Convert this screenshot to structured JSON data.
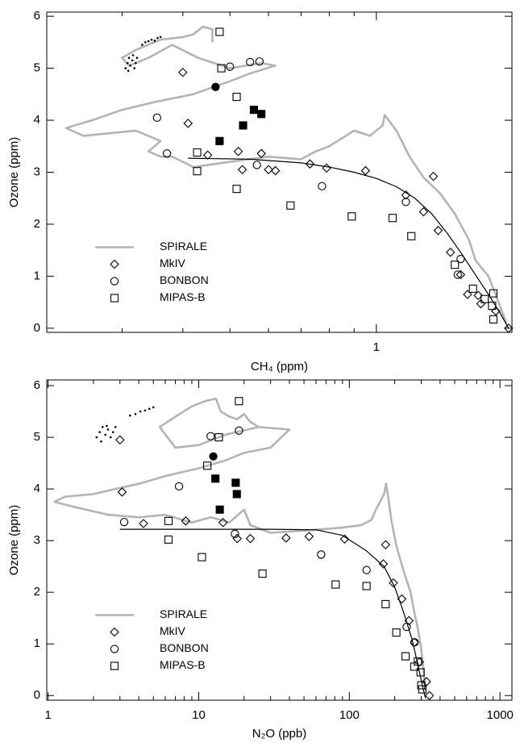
{
  "chart_data": [
    {
      "type": "scatter",
      "xlabel": "CH₄ (ppm)",
      "ylabel": "Ozone (ppm)",
      "xscale": "log",
      "xlim": [
        0.21,
        1.9
      ],
      "ylim": [
        -0.08,
        6.08
      ],
      "xticks": [
        1
      ],
      "xminorticks": [
        0.3,
        0.4,
        0.5,
        0.6,
        0.7,
        0.8,
        0.9
      ],
      "yticks": [
        0,
        1,
        2,
        3,
        4,
        5,
        6
      ],
      "legend": "lower left",
      "series": [
        {
          "name": "SPIRALE",
          "color": "#b4b4b4",
          "marker": "line",
          "x": [
            1.85,
            1.8,
            1.75,
            1.7,
            1.6,
            1.55,
            1.45,
            1.35,
            1.25,
            1.17,
            1.1,
            1.04,
            1.03,
            0.97,
            0.9,
            0.8,
            0.75,
            0.7,
            0.6,
            0.5,
            0.42,
            0.4,
            0.38,
            0.36,
            0.34,
            0.36,
            0.32,
            0.25,
            0.23,
            0.26,
            0.3,
            0.35,
            0.42,
            0.45,
            0.5,
            0.55,
            0.62,
            0.58,
            0.5,
            0.43,
            0.38,
            0.34,
            0.31,
            0.3,
            0.32,
            0.36,
            0.4,
            0.42,
            0.44,
            0.46,
            0.46
          ],
          "values": [
            0.1,
            0.4,
            0.7,
            1.0,
            1.3,
            1.7,
            2.2,
            2.6,
            2.9,
            3.3,
            3.8,
            4.1,
            3.9,
            3.7,
            3.8,
            3.5,
            3.4,
            3.25,
            3.3,
            3.2,
            3.1,
            3.2,
            3.3,
            3.3,
            3.4,
            3.6,
            3.8,
            3.7,
            3.85,
            4.0,
            4.2,
            4.35,
            4.5,
            4.6,
            4.75,
            4.9,
            5.05,
            5.1,
            5.0,
            5.2,
            5.45,
            5.2,
            5.05,
            5.2,
            5.35,
            5.55,
            5.6,
            5.65,
            5.8,
            5.75,
            5.5
          ]
        },
        {
          "color": "#000000",
          "marker": "line",
          "x": [
            0.41,
            0.55,
            0.7,
            0.8,
            0.9,
            1.0,
            1.1,
            1.2,
            1.3,
            1.4,
            1.5,
            1.6,
            1.7,
            1.8,
            1.87
          ],
          "values": [
            3.27,
            3.25,
            3.18,
            3.1,
            3.0,
            2.88,
            2.72,
            2.5,
            2.2,
            1.82,
            1.42,
            1.02,
            0.65,
            0.28,
            0.0
          ]
        },
        {
          "color": "#000000",
          "marker": "dot",
          "x": [
            0.305,
            0.308,
            0.31,
            0.312,
            0.315,
            0.318,
            0.32,
            0.322,
            0.309,
            0.316,
            0.33,
            0.335,
            0.34,
            0.345,
            0.35,
            0.355,
            0.36
          ],
          "values": [
            5.0,
            5.1,
            5.2,
            5.05,
            5.15,
            5.0,
            5.1,
            5.2,
            4.95,
            5.25,
            5.45,
            5.5,
            5.52,
            5.55,
            5.53,
            5.58,
            5.6
          ]
        },
        {
          "name": "MkIV",
          "color": "#000000",
          "marker": "diamond",
          "x": [
            0.4,
            0.41,
            0.45,
            0.52,
            0.58,
            0.53,
            0.6,
            0.62,
            0.73,
            0.79,
            0.95,
            1.15,
            1.31,
            1.25,
            1.34,
            1.42,
            1.49,
            1.54,
            1.62,
            1.64,
            1.76,
            1.87
          ],
          "values": [
            4.92,
            3.94,
            3.33,
            3.4,
            3.36,
            3.05,
            3.05,
            3.03,
            3.16,
            3.08,
            3.03,
            2.56,
            2.92,
            2.24,
            1.88,
            1.46,
            1.03,
            0.65,
            0.63,
            0.47,
            0.33,
            0.0
          ]
        },
        {
          "name": "BONBON",
          "color": "#000000",
          "marker": "circle",
          "x": [
            0.5,
            0.55,
            0.575,
            0.354,
            0.371,
            0.568,
            0.773,
            1.15,
            1.49,
            1.47
          ],
          "values": [
            5.03,
            5.12,
            5.13,
            4.05,
            3.36,
            3.14,
            2.73,
            2.43,
            1.33,
            1.03
          ]
        },
        {
          "color": "#000000",
          "marker": "circle",
          "filled": true,
          "x": [
            0.467
          ],
          "values": [
            4.64
          ]
        },
        {
          "name": "MIPAS-B",
          "color": "#000000",
          "marker": "square",
          "x": [
            0.476,
            0.48,
            0.516,
            0.428,
            0.428,
            0.516,
            0.666,
            0.89,
            1.08,
            1.18,
            1.45,
            1.58,
            1.67,
            1.74,
            1.73,
            1.74
          ],
          "values": [
            5.7,
            5.0,
            4.45,
            3.38,
            3.02,
            2.68,
            2.36,
            2.15,
            2.12,
            1.77,
            1.22,
            0.76,
            0.56,
            0.67,
            0.43,
            0.17
          ]
        },
        {
          "color": "#000000",
          "marker": "square",
          "filled": true,
          "x": [
            0.476,
            0.532,
            0.56,
            0.58
          ],
          "values": [
            3.6,
            3.9,
            4.2,
            4.12
          ]
        }
      ]
    },
    {
      "type": "scatter",
      "xlabel": "N₂O (ppb)",
      "ylabel": "Ozone (ppm)",
      "xscale": "log",
      "xlim": [
        0.98,
        1200
      ],
      "ylim": [
        -0.09,
        6.11
      ],
      "xticks": [
        1,
        10,
        100,
        1000
      ],
      "xminorticks": [
        2,
        3,
        4,
        5,
        6,
        7,
        8,
        9,
        20,
        30,
        40,
        50,
        60,
        70,
        80,
        90,
        200,
        300,
        400,
        500,
        600,
        700,
        800,
        900
      ],
      "yticks": [
        0,
        1,
        2,
        3,
        4,
        5,
        6
      ],
      "legend": "lower left",
      "series": [
        {
          "name": "SPIRALE",
          "color": "#b4b4b4",
          "marker": "line",
          "x": [
            320,
            310,
            300,
            285,
            270,
            255,
            230,
            205,
            190,
            180,
            175,
            170,
            150,
            140,
            120,
            90,
            55,
            30,
            22,
            20,
            16,
            12,
            9,
            6,
            4,
            2.5,
            1.5,
            1.1,
            1.3,
            2,
            2.8,
            4,
            6,
            10,
            15,
            20,
            30,
            40,
            25,
            15,
            10,
            7,
            5.5,
            7,
            9,
            11,
            13,
            14,
            16,
            18,
            20,
            22,
            25
          ],
          "values": [
            0.1,
            0.5,
            0.9,
            1.3,
            1.6,
            2.0,
            2.4,
            2.9,
            3.4,
            3.9,
            4.1,
            3.9,
            3.6,
            3.4,
            3.3,
            3.25,
            3.2,
            3.15,
            3.3,
            3.6,
            3.35,
            3.45,
            3.35,
            3.5,
            3.45,
            3.5,
            3.65,
            3.75,
            3.85,
            3.9,
            4.0,
            4.1,
            4.25,
            4.4,
            4.55,
            4.7,
            4.8,
            5.15,
            5.2,
            5.05,
            4.85,
            4.8,
            5.2,
            5.4,
            5.6,
            5.7,
            5.75,
            5.5,
            5.4,
            5.35,
            5.45,
            5.3,
            5.2
          ]
        },
        {
          "color": "#000000",
          "marker": "line",
          "x": [
            3,
            10,
            30,
            60,
            90,
            130,
            170,
            200,
            230,
            260,
            285,
            305,
            320
          ],
          "values": [
            3.22,
            3.22,
            3.22,
            3.21,
            3.1,
            2.8,
            2.5,
            2.1,
            1.6,
            1.1,
            0.6,
            0.2,
            -0.05
          ]
        },
        {
          "color": "#000000",
          "marker": "dot",
          "x": [
            2.1,
            2.2,
            2.3,
            2.4,
            2.5,
            2.6,
            2.7,
            2.8,
            2.25,
            2.45,
            3.5,
            3.8,
            4.1,
            4.4,
            4.7,
            5.0
          ],
          "values": [
            5.0,
            5.1,
            5.2,
            5.05,
            5.15,
            5.0,
            5.1,
            5.2,
            4.92,
            5.22,
            5.42,
            5.45,
            5.5,
            5.52,
            5.55,
            5.58
          ]
        },
        {
          "name": "MkIV",
          "color": "#000000",
          "marker": "diamond",
          "x": [
            3.0,
            3.1,
            4.3,
            8.2,
            14.5,
            22,
            18,
            38,
            54,
            93,
            168,
            174,
            196,
            223,
            249,
            270,
            292,
            325,
            340
          ],
          "values": [
            4.95,
            3.94,
            3.33,
            3.38,
            3.35,
            3.04,
            3.04,
            3.05,
            3.08,
            3.03,
            2.55,
            2.92,
            2.18,
            1.87,
            1.45,
            1.03,
            0.65,
            0.27,
            0.0
          ]
        },
        {
          "name": "BONBON",
          "color": "#000000",
          "marker": "circle",
          "x": [
            3.2,
            7.4,
            12,
            18.5,
            17.4,
            65,
            130,
            240,
            271
          ],
          "values": [
            3.36,
            4.05,
            5.02,
            5.13,
            3.13,
            2.73,
            2.43,
            1.33,
            1.03
          ]
        },
        {
          "color": "#000000",
          "marker": "circle",
          "filled": true,
          "x": [
            12.5
          ],
          "values": [
            4.63
          ]
        },
        {
          "name": "MIPAS-B",
          "color": "#000000",
          "marker": "square",
          "x": [
            18.5,
            13.6,
            11.4,
            6.3,
            6.3,
            10.5,
            26.5,
            81,
            130,
            174,
            205,
            236,
            270,
            285,
            297,
            300,
            305
          ],
          "values": [
            5.7,
            5.0,
            4.45,
            3.38,
            3.02,
            2.68,
            2.36,
            2.15,
            2.12,
            1.77,
            1.22,
            0.76,
            0.56,
            0.66,
            0.45,
            0.2,
            0.12
          ]
        },
        {
          "color": "#000000",
          "marker": "square",
          "filled": true,
          "x": [
            13.8,
            12.9,
            17.6,
            17.9
          ],
          "values": [
            3.6,
            4.2,
            4.12,
            3.9
          ]
        }
      ]
    }
  ]
}
